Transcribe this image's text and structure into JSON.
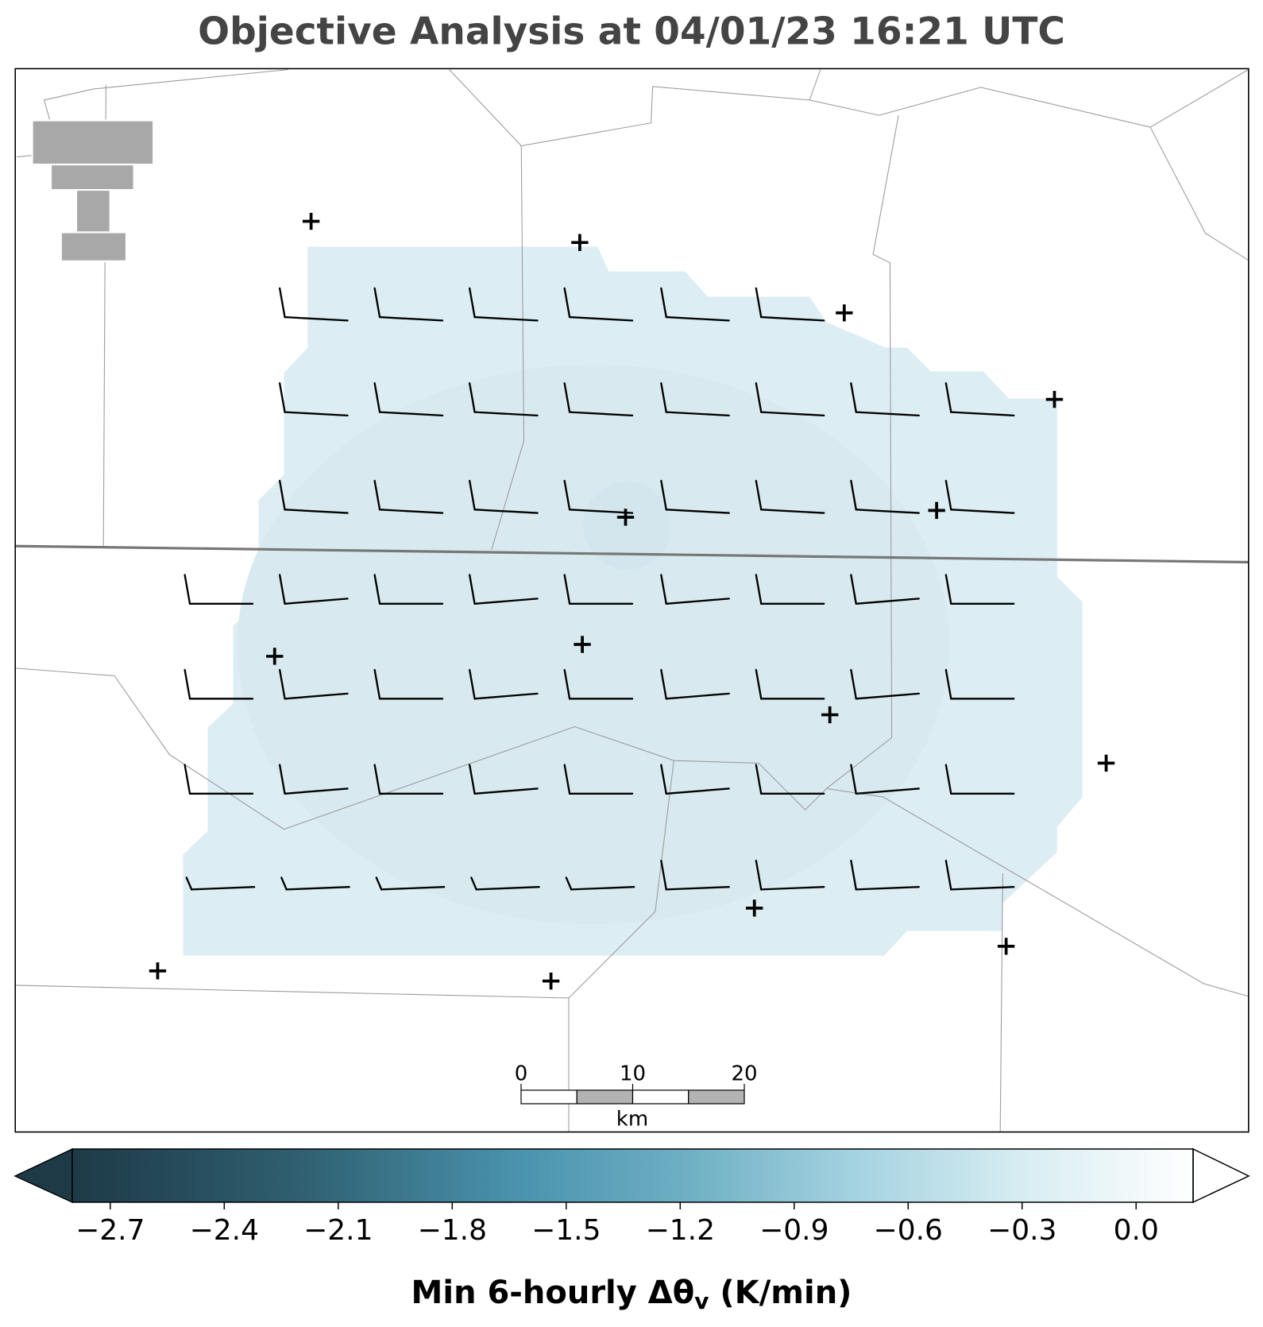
{
  "title": "Objective Analysis at 04/01/23 16:21 UTC",
  "scale_bar": {
    "ticks": [
      0,
      10,
      20
    ],
    "lim": [
      0,
      20
    ],
    "unit": "km"
  },
  "colorbar": {
    "lim": [
      -2.8,
      0.15
    ],
    "ticks": [
      {
        "value": -2.7,
        "label": "−2.7"
      },
      {
        "value": -2.4,
        "label": "−2.4"
      },
      {
        "value": -2.1,
        "label": "−2.1"
      },
      {
        "value": -1.8,
        "label": "−1.8"
      },
      {
        "value": -1.5,
        "label": "−1.5"
      },
      {
        "value": -1.2,
        "label": "−1.2"
      },
      {
        "value": -0.9,
        "label": "−0.9"
      },
      {
        "value": -0.6,
        "label": "−0.6"
      },
      {
        "value": -0.3,
        "label": "−0.3"
      },
      {
        "value": 0,
        "label": "0.0"
      }
    ],
    "label_main": "Min 6-hourly Δθ",
    "label_sub": "v",
    "label_end": " (K/min)"
  }
}
